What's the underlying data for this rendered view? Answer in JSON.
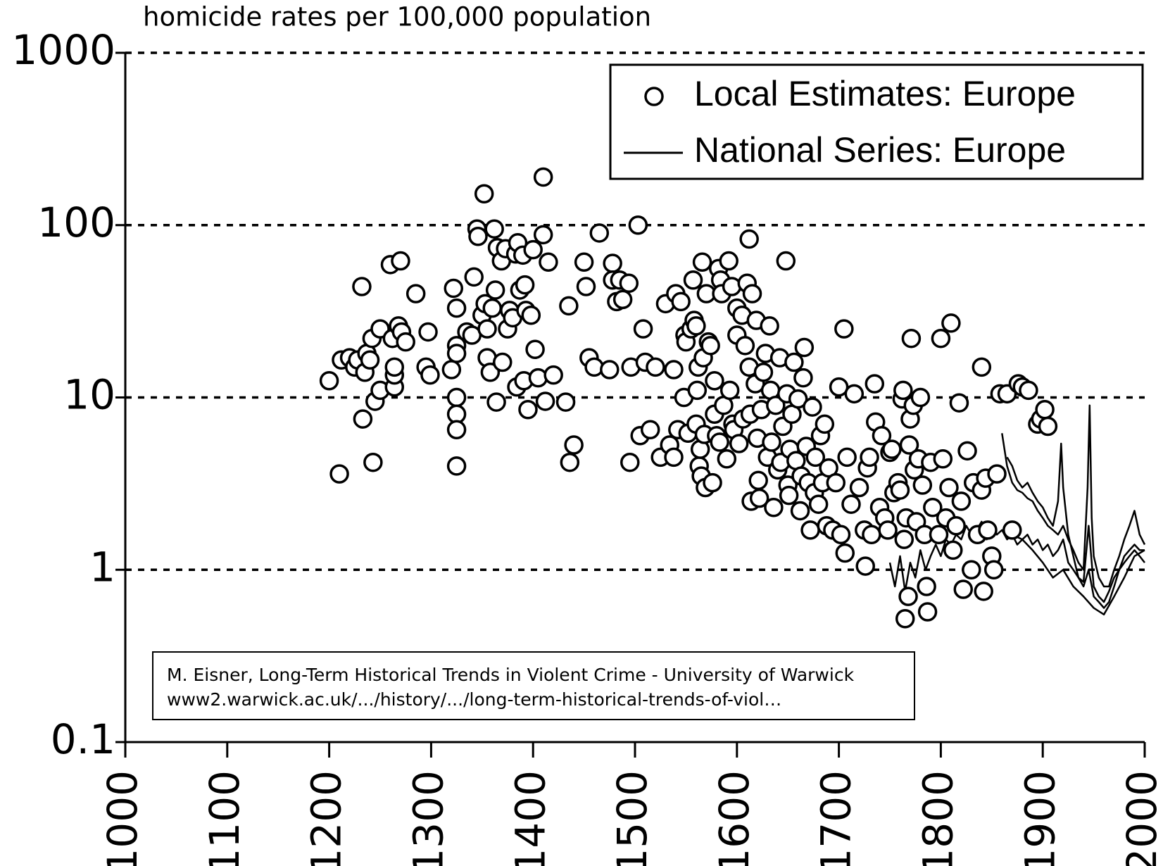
{
  "chart_data": {
    "type": "scatter",
    "title": "homicide rates per 100,000 population",
    "xlim": [
      1000,
      2000
    ],
    "xticks": [
      1000,
      1100,
      1200,
      1300,
      1400,
      1500,
      1600,
      1700,
      1800,
      1900,
      2000
    ],
    "ylim": [
      0.1,
      1000
    ],
    "yticks": [
      0.1,
      1,
      10,
      100,
      1000
    ],
    "y_scale": "log",
    "grid": true,
    "legend": "top-right",
    "annotations": [
      "M. Eisner, Long-Term Historical Trends in Violent Crime - University of Warwick",
      "www2.warwick.ac.uk/.../history/.../long-term-historical-trends-of-viol…"
    ],
    "series": [
      {
        "name": "Local Estimates: Europe",
        "type": "scatter",
        "color": "#000000",
        "x": [
          1200,
          1210,
          1212,
          1220,
          1225,
          1228,
          1232,
          1233,
          1235,
          1237,
          1240,
          1242,
          1243,
          1245,
          1250,
          1250,
          1260,
          1262,
          1264,
          1264,
          1264,
          1268,
          1270,
          1271,
          1275,
          1285,
          1295,
          1297,
          1299,
          1320,
          1322,
          1325,
          1325,
          1325,
          1325,
          1325,
          1325,
          1325,
          1335,
          1340,
          1342,
          1345,
          1346,
          1350,
          1352,
          1353,
          1355,
          1355,
          1358,
          1360,
          1362,
          1363,
          1364,
          1365,
          1369,
          1370,
          1373,
          1375,
          1377,
          1380,
          1383,
          1384,
          1385,
          1387,
          1390,
          1391,
          1392,
          1393,
          1395,
          1398,
          1400,
          1402,
          1405,
          1410,
          1410,
          1412,
          1415,
          1420,
          1432,
          1435,
          1436,
          1440,
          1450,
          1452,
          1455,
          1460,
          1465,
          1475,
          1478,
          1478,
          1482,
          1485,
          1488,
          1494,
          1495,
          1496,
          1503,
          1505,
          1508,
          1510,
          1515,
          1520,
          1525,
          1530,
          1534,
          1538,
          1538,
          1540,
          1542,
          1545,
          1548,
          1549,
          1550,
          1552,
          1555,
          1557,
          1558,
          1560,
          1560,
          1561,
          1562,
          1563,
          1564,
          1565,
          1566,
          1567,
          1568,
          1569,
          1570,
          1572,
          1574,
          1576,
          1578,
          1578,
          1580,
          1582,
          1583,
          1584,
          1585,
          1587,
          1590,
          1592,
          1593,
          1595,
          1596,
          1597,
          1600,
          1600,
          1602,
          1605,
          1606,
          1608,
          1610,
          1612,
          1612,
          1613,
          1614,
          1615,
          1618,
          1619,
          1620,
          1621,
          1622,
          1624,
          1626,
          1628,
          1630,
          1632,
          1633,
          1634,
          1636,
          1638,
          1640,
          1642,
          1643,
          1645,
          1648,
          1649,
          1650,
          1651,
          1652,
          1654,
          1656,
          1658,
          1660,
          1662,
          1663,
          1665,
          1666,
          1668,
          1670,
          1672,
          1674,
          1676,
          1677,
          1680,
          1682,
          1684,
          1686,
          1688,
          1690,
          1694,
          1697,
          1700,
          1702,
          1705,
          1706,
          1708,
          1712,
          1715,
          1720,
          1725,
          1726,
          1728,
          1730,
          1732,
          1735,
          1736,
          1740,
          1742,
          1745,
          1748,
          1750,
          1752,
          1754,
          1758,
          1760,
          1762,
          1763,
          1764,
          1765,
          1766,
          1768,
          1769,
          1770,
          1771,
          1773,
          1774,
          1776,
          1778,
          1780,
          1782,
          1784,
          1786,
          1787,
          1790,
          1792,
          1798,
          1800,
          1802,
          1805,
          1808,
          1810,
          1812,
          1815,
          1818,
          1820,
          1822,
          1826,
          1830,
          1832,
          1836,
          1840,
          1840,
          1842,
          1844,
          1846,
          1850,
          1852,
          1855,
          1858,
          1865,
          1870,
          1876,
          1880,
          1886,
          1895,
          1898,
          1902,
          1905
        ],
        "values": [
          12.5,
          3.6,
          16.5,
          17,
          15,
          16.5,
          44,
          7.5,
          14,
          18,
          16.5,
          22,
          4.2,
          9.5,
          25,
          11,
          59,
          22,
          11.5,
          13.5,
          15,
          26,
          62,
          24,
          21,
          40,
          15,
          24,
          13.5,
          14.5,
          43,
          33,
          20,
          18,
          10,
          8,
          6.5,
          4,
          24,
          23,
          50,
          95,
          86,
          30,
          152,
          35,
          25,
          17,
          14,
          33,
          95,
          42,
          9.4,
          74,
          62,
          16,
          73,
          25,
          32,
          29,
          68,
          11.5,
          79,
          42,
          67,
          12.5,
          45,
          32,
          8.5,
          30,
          72,
          19,
          13,
          190,
          88,
          9.5,
          61,
          13.5,
          9.4,
          34,
          4.2,
          5.3,
          61,
          44,
          17,
          15,
          90,
          14.5,
          60,
          48,
          36,
          48,
          37,
          46,
          4.2,
          15,
          100,
          6,
          25,
          16,
          6.5,
          15,
          4.5,
          35,
          5.3,
          14.5,
          4.5,
          40,
          6.5,
          36,
          10,
          23,
          21,
          6.2,
          25,
          48,
          28,
          26,
          7,
          11,
          15,
          4,
          5,
          3.5,
          61,
          17,
          6.1,
          3,
          40,
          21,
          20,
          3.2,
          12.5,
          8,
          6,
          56,
          5.5,
          48,
          40,
          9,
          4.4,
          62,
          11,
          44,
          7,
          6.5,
          33,
          23,
          5.4,
          30,
          7.5,
          20,
          46,
          83,
          15,
          8,
          2.5,
          40,
          12,
          28,
          5.8,
          3.3,
          2.6,
          8.5,
          14,
          18,
          4.5,
          26,
          11,
          5.5,
          2.3,
          9,
          3.8,
          17,
          4.2,
          6.8,
          62,
          10.5,
          3.1,
          2.7,
          5,
          8,
          16,
          4.3,
          9.8,
          2.2,
          3.5,
          13,
          19.5,
          5.2,
          3.2,
          1.7,
          8.8,
          2.8,
          4.5,
          2.4,
          6,
          3.2,
          7,
          1.8,
          3.9,
          1.7,
          3.2,
          11.5,
          1.6,
          25,
          1.25,
          4.5,
          2.4,
          10.5,
          3,
          1.7,
          1.05,
          3.9,
          4.5,
          1.6,
          12,
          7.2,
          2.3,
          6,
          2,
          1.7,
          4.8,
          5,
          2.8,
          3.2,
          2.9,
          9.8,
          11,
          1.5,
          0.52,
          2,
          0.7,
          5.3,
          7.5,
          22,
          9,
          3.8,
          1.9,
          4.4,
          10,
          3.1,
          1.6,
          0.8,
          0.57,
          4.2,
          2.3,
          1.6,
          22,
          4.4,
          2,
          3,
          27,
          1.3,
          1.8,
          9.3,
          2.5,
          0.77,
          4.9,
          1,
          3.2,
          1.6,
          15,
          2.9,
          0.75,
          3.4,
          1.7,
          1.2,
          1,
          3.6,
          10.5,
          10.5,
          1.7,
          12,
          11.5,
          11,
          7,
          7.5,
          8.5,
          6.8
        ]
      },
      {
        "name": "National Series: Europe",
        "type": "line",
        "color": "#000000",
        "segments": [
          {
            "x": [
              1750,
              1755,
              1760,
              1765,
              1770,
              1775,
              1780,
              1785,
              1790,
              1795,
              1800,
              1805,
              1810,
              1815,
              1820,
              1825,
              1830,
              1835,
              1840,
              1845,
              1850,
              1855,
              1860,
              1865,
              1870,
              1875,
              1880,
              1885,
              1890,
              1895,
              1900,
              1905,
              1910,
              1915,
              1920,
              1925,
              1930,
              1935,
              1940,
              1945,
              1950,
              1955,
              1960,
              1965,
              1970,
              1975,
              1980,
              1985,
              1990,
              1995,
              2000
            ],
            "values": [
              1.1,
              0.8,
              1.2,
              0.75,
              1.1,
              0.9,
              1.3,
              1.0,
              1.2,
              1.4,
              1.2,
              1.5,
              1.4,
              1.6,
              1.5,
              1.8,
              1.6,
              1.7,
              1.9,
              1.5,
              1.8,
              1.6,
              1.7,
              1.5,
              1.6,
              1.4,
              1.5,
              1.6,
              1.4,
              1.5,
              1.3,
              1.4,
              1.2,
              1.3,
              1.5,
              1.1,
              1.0,
              0.9,
              0.85,
              1.8,
              0.8,
              0.7,
              0.65,
              0.75,
              0.9,
              1.0,
              1.2,
              1.3,
              1.4,
              1.3,
              1.3
            ]
          },
          {
            "x": [
              1860,
              1865,
              1870,
              1875,
              1880,
              1885,
              1890,
              1895,
              1900,
              1905,
              1910,
              1915,
              1920,
              1925,
              1930,
              1935,
              1940,
              1944,
              1946,
              1948,
              1950,
              1955,
              1960,
              1965,
              1970,
              1975,
              1980,
              1985,
              1990,
              1995,
              2000
            ],
            "values": [
              6.2,
              4,
              3.2,
              2.9,
              2.8,
              2.6,
              2.5,
              2.2,
              2.0,
              1.8,
              1.7,
              1.6,
              1.8,
              1.5,
              1.3,
              1.1,
              1.0,
              3,
              9,
              2,
              1.2,
              0.9,
              0.8,
              0.8,
              1.0,
              1.2,
              1.5,
              1.8,
              2.2,
              1.6,
              1.4
            ]
          },
          {
            "x": [
              1865,
              1870,
              1875,
              1880,
              1885,
              1890,
              1895,
              1900,
              1905,
              1910,
              1915,
              1918,
              1920,
              1925,
              1930,
              1935,
              1940,
              1945,
              1950,
              1955,
              1960,
              1965,
              1970,
              1975,
              1980,
              1985,
              1990,
              1995,
              2000
            ],
            "values": [
              4.5,
              4,
              3.3,
              3,
              3.2,
              2.8,
              2.5,
              2.3,
              2,
              1.8,
              2.5,
              5.4,
              3,
              1.6,
              1.2,
              0.9,
              0.8,
              1.0,
              0.7,
              0.65,
              0.6,
              0.65,
              0.8,
              1.0,
              1.1,
              1.2,
              1.3,
              1.2,
              1.1
            ]
          },
          {
            "x": [
              1870,
              1880,
              1890,
              1900,
              1910,
              1920,
              1930,
              1940,
              1950,
              1960,
              1970,
              1980,
              1990,
              2000
            ],
            "values": [
              1.6,
              1.5,
              1.3,
              1.1,
              0.9,
              1.0,
              0.8,
              0.7,
              0.6,
              0.55,
              0.7,
              0.9,
              1.2,
              1.3
            ]
          }
        ]
      }
    ]
  }
}
